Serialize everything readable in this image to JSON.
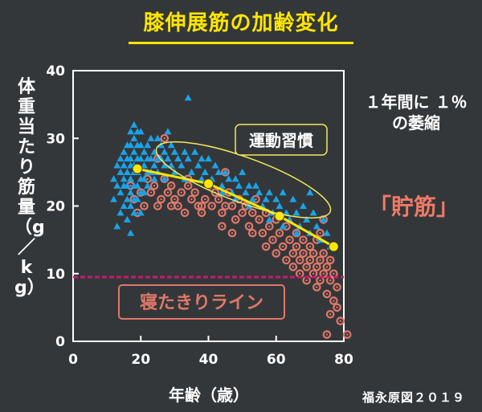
{
  "title": "膝伸展筋の加齢変化",
  "ylabel": "体重当たり筋量（g／kg）",
  "xlabel": "年齢（歳）",
  "note": "１年間に １％の萎縮",
  "callout": "「貯筋」",
  "source": "福永原図２０１９",
  "annotations": {
    "exercise": "運動習慣",
    "bedridden": "寝たきりライン"
  },
  "colors": {
    "title": "#ffe600",
    "triangle": "#1aa3e8",
    "circle": "#e07868",
    "trend": "#ffe600",
    "bedridden_line": "#c8196e",
    "exercise_ellipse": "#f2e85a",
    "bedridden_box": "#e07868",
    "callout": "#f07a66"
  },
  "chart_data": {
    "type": "scatter",
    "xlabel": "年齢（歳）",
    "ylabel": "体重当たり筋量（g／kg）",
    "xlim": [
      0,
      80
    ],
    "ylim": [
      0,
      40
    ],
    "xticks": [
      0,
      20,
      40,
      60,
      80
    ],
    "yticks": [
      0,
      10,
      20,
      30,
      40
    ],
    "threshold": 9.5,
    "trend": {
      "x": [
        19,
        40,
        61,
        77
      ],
      "y": [
        25.5,
        23.3,
        18.5,
        14.0
      ]
    },
    "series": [
      {
        "marker": "triangle",
        "points": [
          [
            12,
            24
          ],
          [
            12,
            21
          ],
          [
            13,
            26
          ],
          [
            13,
            23
          ],
          [
            13,
            17
          ],
          [
            14,
            27
          ],
          [
            14,
            25
          ],
          [
            14,
            22
          ],
          [
            14,
            19
          ],
          [
            15,
            28
          ],
          [
            15,
            26
          ],
          [
            15,
            24
          ],
          [
            15,
            23
          ],
          [
            15,
            20
          ],
          [
            16,
            29
          ],
          [
            16,
            27
          ],
          [
            16,
            25
          ],
          [
            16,
            23
          ],
          [
            16,
            21
          ],
          [
            16,
            18
          ],
          [
            17,
            31
          ],
          [
            17,
            29
          ],
          [
            17,
            27
          ],
          [
            17,
            26
          ],
          [
            17,
            24
          ],
          [
            17,
            22
          ],
          [
            17,
            20
          ],
          [
            17,
            16
          ],
          [
            18,
            32
          ],
          [
            18,
            30
          ],
          [
            18,
            28
          ],
          [
            18,
            26
          ],
          [
            18,
            25
          ],
          [
            18,
            23
          ],
          [
            18,
            21
          ],
          [
            18,
            19
          ],
          [
            19,
            31
          ],
          [
            19,
            29
          ],
          [
            19,
            27
          ],
          [
            19,
            25
          ],
          [
            19,
            23
          ],
          [
            19,
            21
          ],
          [
            20,
            31
          ],
          [
            20,
            29
          ],
          [
            20,
            27
          ],
          [
            20,
            24
          ],
          [
            20,
            22
          ],
          [
            20,
            19
          ],
          [
            21,
            28
          ],
          [
            21,
            26
          ],
          [
            21,
            24
          ],
          [
            21,
            22
          ],
          [
            22,
            29
          ],
          [
            22,
            27
          ],
          [
            22,
            25
          ],
          [
            22,
            23
          ],
          [
            23,
            30
          ],
          [
            23,
            27
          ],
          [
            23,
            25
          ],
          [
            24,
            28
          ],
          [
            24,
            26
          ],
          [
            24,
            24
          ],
          [
            25,
            30
          ],
          [
            25,
            27
          ],
          [
            25,
            25
          ],
          [
            26,
            29
          ],
          [
            26,
            27
          ],
          [
            27,
            28
          ],
          [
            27,
            26
          ],
          [
            27,
            24
          ],
          [
            28,
            31
          ],
          [
            28,
            27
          ],
          [
            29,
            29
          ],
          [
            29,
            26
          ],
          [
            30,
            28
          ],
          [
            30,
            25
          ],
          [
            31,
            27
          ],
          [
            32,
            26
          ],
          [
            33,
            28
          ],
          [
            33,
            24
          ],
          [
            34,
            36
          ],
          [
            34,
            27
          ],
          [
            35,
            25
          ],
          [
            36,
            28
          ],
          [
            37,
            26
          ],
          [
            38,
            24
          ],
          [
            38,
            27
          ],
          [
            39,
            25
          ],
          [
            40,
            27
          ],
          [
            41,
            24
          ],
          [
            42,
            26
          ],
          [
            43,
            25
          ],
          [
            44,
            23
          ],
          [
            45,
            25
          ],
          [
            46,
            24
          ],
          [
            47,
            22
          ],
          [
            48,
            24
          ],
          [
            49,
            23
          ],
          [
            50,
            25
          ],
          [
            51,
            22
          ],
          [
            52,
            23
          ],
          [
            53,
            21
          ],
          [
            54,
            23
          ],
          [
            55,
            22
          ],
          [
            56,
            20
          ],
          [
            57,
            21
          ],
          [
            58,
            22
          ],
          [
            59,
            19
          ],
          [
            60,
            21
          ],
          [
            61,
            20
          ],
          [
            62,
            22
          ],
          [
            63,
            19
          ],
          [
            64,
            18
          ],
          [
            65,
            21
          ],
          [
            66,
            19
          ],
          [
            67,
            17
          ],
          [
            68,
            20
          ],
          [
            69,
            18
          ],
          [
            70,
            22
          ],
          [
            70,
            16
          ],
          [
            71,
            19
          ],
          [
            72,
            17
          ],
          [
            73,
            15
          ],
          [
            74,
            18
          ],
          [
            75,
            16
          ],
          [
            76,
            14
          ],
          [
            58,
            18
          ],
          [
            62,
            17
          ],
          [
            66,
            16
          ],
          [
            52,
            20
          ],
          [
            48,
            21
          ],
          [
            44,
            22
          ]
        ]
      },
      {
        "marker": "circle",
        "points": [
          [
            17,
            23
          ],
          [
            18,
            21
          ],
          [
            19,
            19
          ],
          [
            20,
            22
          ],
          [
            21,
            20
          ],
          [
            22,
            24
          ],
          [
            23,
            22
          ],
          [
            24,
            23
          ],
          [
            25,
            20
          ],
          [
            26,
            21
          ],
          [
            27,
            24
          ],
          [
            28,
            22
          ],
          [
            29,
            23
          ],
          [
            30,
            21
          ],
          [
            31,
            20
          ],
          [
            32,
            22
          ],
          [
            33,
            19
          ],
          [
            34,
            23
          ],
          [
            35,
            21
          ],
          [
            36,
            22
          ],
          [
            37,
            20
          ],
          [
            38,
            19
          ],
          [
            39,
            21
          ],
          [
            40,
            23
          ],
          [
            41,
            20
          ],
          [
            42,
            22
          ],
          [
            43,
            21
          ],
          [
            44,
            19
          ],
          [
            45,
            20
          ],
          [
            46,
            22
          ],
          [
            47,
            20
          ],
          [
            48,
            18
          ],
          [
            49,
            21
          ],
          [
            50,
            19
          ],
          [
            51,
            20
          ],
          [
            52,
            17
          ],
          [
            53,
            19
          ],
          [
            54,
            21
          ],
          [
            55,
            18
          ],
          [
            56,
            16
          ],
          [
            57,
            19
          ],
          [
            58,
            17
          ],
          [
            59,
            15
          ],
          [
            60,
            18
          ],
          [
            60,
            13
          ],
          [
            61,
            16
          ],
          [
            62,
            14
          ],
          [
            63,
            17
          ],
          [
            63,
            12
          ],
          [
            64,
            15
          ],
          [
            65,
            13
          ],
          [
            65,
            11
          ],
          [
            66,
            16
          ],
          [
            66,
            14
          ],
          [
            67,
            12
          ],
          [
            67,
            10
          ],
          [
            68,
            15
          ],
          [
            68,
            13
          ],
          [
            69,
            11
          ],
          [
            69,
            9
          ],
          [
            70,
            14
          ],
          [
            70,
            12
          ],
          [
            71,
            13
          ],
          [
            71,
            10
          ],
          [
            72,
            15
          ],
          [
            72,
            11
          ],
          [
            72,
            8
          ],
          [
            73,
            12
          ],
          [
            73,
            9
          ],
          [
            74,
            13
          ],
          [
            74,
            10
          ],
          [
            75,
            11
          ],
          [
            75,
            7
          ],
          [
            76,
            12
          ],
          [
            76,
            9
          ],
          [
            77,
            10
          ],
          [
            77,
            6
          ],
          [
            78,
            8
          ],
          [
            78,
            5
          ],
          [
            76,
            4
          ],
          [
            79,
            3
          ],
          [
            81,
            1
          ],
          [
            75,
            1
          ],
          [
            38,
            20
          ],
          [
            29,
            20
          ],
          [
            44,
            17
          ],
          [
            47,
            16
          ],
          [
            53,
            16
          ],
          [
            57,
            14
          ],
          [
            34,
            24
          ],
          [
            25,
            27
          ],
          [
            45,
            25
          ],
          [
            27,
            30
          ],
          [
            73,
            16
          ],
          [
            74,
            18
          ]
        ]
      }
    ]
  }
}
